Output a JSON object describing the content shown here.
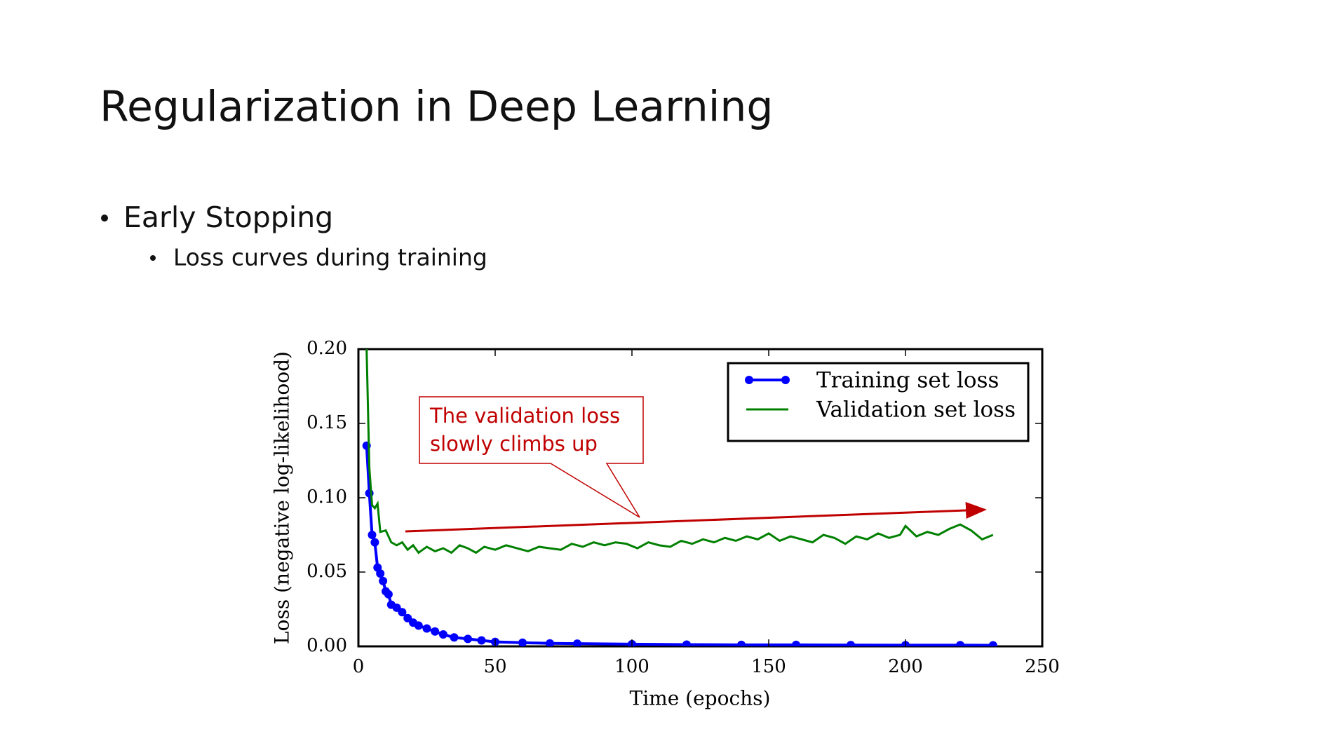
{
  "slide": {
    "title": "Regularization in Deep Learning",
    "bullet": "Early Stopping",
    "sub_bullet": "Loss curves during training"
  },
  "chart_data": {
    "type": "line",
    "xlabel": "Time (epochs)",
    "ylabel": "Loss (negative log-likelihood)",
    "annotation": [
      "The validation loss",
      "slowly climbs up"
    ],
    "xlim": [
      0,
      250
    ],
    "xticks": [
      0,
      50,
      100,
      150,
      200,
      250
    ],
    "ylim": [
      0,
      0.2
    ],
    "yticks": [
      {
        "value": 0,
        "label": "0.00"
      },
      {
        "value": 0.05,
        "label": "0.05"
      },
      {
        "value": 0.1,
        "label": "0.10"
      },
      0.15,
      {
        "value": 0.2,
        "label": "0.20"
      }
    ],
    "legend": "upper right",
    "series": [
      {
        "name": "Training set loss",
        "color": "#0000ff",
        "marker": true,
        "x": [
          3,
          4,
          5,
          6,
          7,
          8,
          9,
          10,
          11,
          12,
          14,
          16,
          18,
          20,
          22,
          25,
          28,
          31,
          35,
          40,
          45,
          50,
          60,
          70,
          80,
          100,
          120,
          140,
          160,
          180,
          200,
          220,
          232
        ],
        "values": [
          0.135,
          0.103,
          0.075,
          0.07,
          0.053,
          0.049,
          0.044,
          0.037,
          0.035,
          0.028,
          0.026,
          0.023,
          0.019,
          0.016,
          0.014,
          0.012,
          0.01,
          0.008,
          0.006,
          0.005,
          0.004,
          0.003,
          0.0025,
          0.002,
          0.0018,
          0.0015,
          0.0012,
          0.001,
          0.001,
          0.0009,
          0.0008,
          0.0008,
          0.0007
        ]
      },
      {
        "name": "Validation set loss",
        "color": "#008000",
        "marker": false,
        "x": [
          3,
          4,
          5,
          6,
          7,
          8,
          10,
          12,
          14,
          16,
          18,
          20,
          22,
          25,
          28,
          31,
          34,
          37,
          40,
          43,
          46,
          50,
          54,
          58,
          62,
          66,
          70,
          74,
          78,
          82,
          86,
          90,
          94,
          98,
          102,
          106,
          110,
          114,
          118,
          122,
          126,
          130,
          134,
          138,
          142,
          146,
          150,
          154,
          158,
          162,
          166,
          170,
          174,
          178,
          182,
          186,
          190,
          194,
          198,
          200,
          204,
          208,
          212,
          216,
          220,
          224,
          228,
          232
        ],
        "values": [
          0.2,
          0.12,
          0.095,
          0.093,
          0.096,
          0.077,
          0.078,
          0.07,
          0.068,
          0.07,
          0.065,
          0.068,
          0.063,
          0.067,
          0.064,
          0.066,
          0.063,
          0.068,
          0.066,
          0.063,
          0.067,
          0.065,
          0.068,
          0.066,
          0.064,
          0.067,
          0.066,
          0.065,
          0.069,
          0.067,
          0.07,
          0.068,
          0.07,
          0.069,
          0.066,
          0.07,
          0.068,
          0.067,
          0.071,
          0.069,
          0.072,
          0.07,
          0.073,
          0.071,
          0.074,
          0.072,
          0.076,
          0.071,
          0.074,
          0.072,
          0.07,
          0.075,
          0.073,
          0.069,
          0.074,
          0.072,
          0.076,
          0.073,
          0.075,
          0.081,
          0.074,
          0.077,
          0.075,
          0.079,
          0.082,
          0.078,
          0.072,
          0.075
        ]
      }
    ]
  }
}
